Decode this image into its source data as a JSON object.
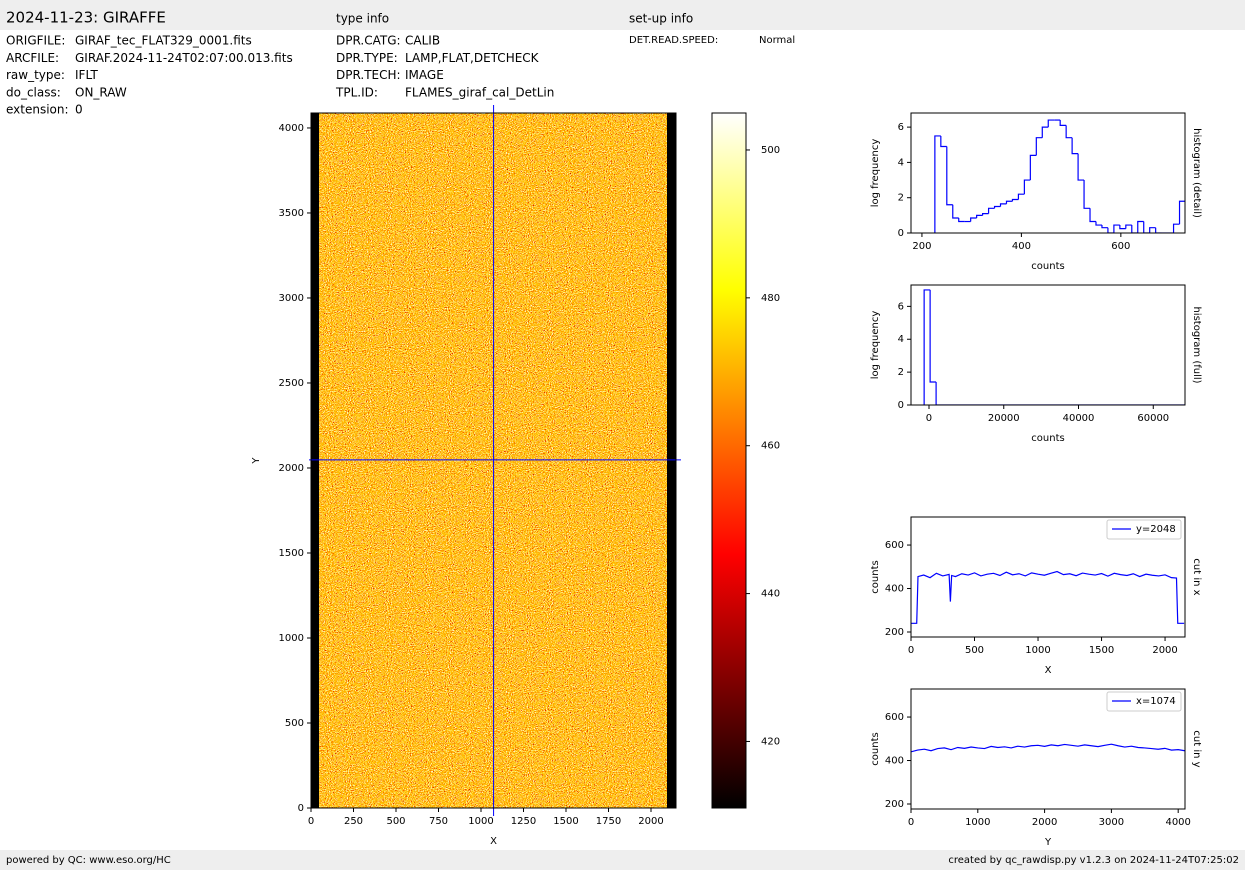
{
  "header": {
    "title": "2024-11-23: GIRAFFE",
    "type_heading": "type info",
    "setup_heading": "set-up info",
    "fields": [
      [
        "ORIGFILE:",
        "GIRAF_tec_FLAT329_0001.fits"
      ],
      [
        "ARCFILE:",
        "GIRAF.2024-11-24T02:07:00.013.fits"
      ],
      [
        "raw_type:",
        "IFLT"
      ],
      [
        "do_class:",
        "ON_RAW"
      ],
      [
        "extension:",
        "0"
      ]
    ],
    "type_fields": [
      [
        "DPR.CATG:",
        "CALIB"
      ],
      [
        "DPR.TYPE:",
        "LAMP,FLAT,DETCHECK"
      ],
      [
        "DPR.TECH:",
        "IMAGE"
      ],
      [
        "TPL.ID:",
        "FLAMES_giraf_cal_DetLin"
      ]
    ],
    "setup_fields": [
      [
        "DET.READ.SPEED:",
        "Normal"
      ]
    ]
  },
  "footer": {
    "left": "powered by QC: www.eso.org/HC",
    "right": "created by qc_rawdisp.py v1.2.3 on 2024-11-24T07:25:02"
  },
  "chart_data": [
    {
      "type": "image",
      "xlabel": "X",
      "ylabel": "Y",
      "xlim": [
        0,
        2147
      ],
      "ylim": [
        0,
        4088
      ],
      "xticks": [
        0,
        250,
        500,
        750,
        1000,
        1250,
        1500,
        1750,
        2000
      ],
      "yticks": [
        0,
        500,
        1000,
        1500,
        2000,
        2500,
        3000,
        3500,
        4000
      ],
      "crosshair": {
        "x": 1074,
        "y": 2048,
        "color": "#0000ff"
      },
      "colormap": "hot",
      "clim": [
        411,
        505
      ],
      "cticks": [
        420,
        440,
        460,
        480,
        500
      ]
    },
    {
      "type": "histogram",
      "xlabel": "counts",
      "ylabel": "log frequency",
      "side_label": "histogram (detail)",
      "color": "#0000ff",
      "xlim": [
        178,
        729
      ],
      "ylim": [
        0,
        6.8
      ],
      "xticks": [
        200,
        400,
        600
      ],
      "yticks": [
        0,
        2,
        4,
        6
      ],
      "bins": [
        226,
        238,
        250,
        262,
        274,
        286,
        298,
        310,
        322,
        334,
        346,
        358,
        370,
        382,
        394,
        406,
        418,
        430,
        442,
        454,
        466,
        478,
        490,
        502,
        514,
        526,
        538,
        550,
        562,
        574,
        586,
        598,
        610,
        622,
        634,
        646,
        658,
        670,
        682,
        694,
        706,
        718,
        730
      ],
      "counts": [
        5.5,
        4.9,
        1.6,
        0.85,
        0.65,
        0.65,
        0.85,
        1.0,
        1.1,
        1.4,
        1.5,
        1.65,
        1.8,
        1.9,
        2.2,
        3.0,
        4.4,
        5.4,
        6.0,
        6.4,
        6.4,
        6.1,
        5.4,
        4.5,
        3.0,
        1.4,
        0.65,
        0.45,
        0.3,
        0,
        0.45,
        0.25,
        0.45,
        0,
        0.65,
        0,
        0.3,
        0,
        0,
        0,
        0.5,
        1.8
      ]
    },
    {
      "type": "histogram",
      "xlabel": "counts",
      "ylabel": "log frequency",
      "side_label": "histogram (full)",
      "color": "#0000ff",
      "xlim": [
        -4815,
        68490
      ],
      "ylim": [
        0,
        7.3
      ],
      "xticks": [
        0,
        20000,
        40000,
        60000
      ],
      "yticks": [
        0,
        2,
        4,
        6
      ],
      "bins": [
        -1300,
        300,
        1900,
        68500
      ],
      "counts": [
        7.0,
        1.4,
        0
      ]
    },
    {
      "type": "line",
      "xlabel": "X",
      "ylabel": "counts",
      "side_label": "cut in x",
      "legend": "upper right",
      "xlim": [
        0,
        2157
      ],
      "ylim": [
        177,
        729
      ],
      "xticks": [
        0,
        500,
        1000,
        1500,
        2000
      ],
      "yticks": [
        200,
        400,
        600
      ],
      "x": [
        0,
        45,
        55,
        100,
        150,
        200,
        250,
        300,
        310,
        320,
        350,
        400,
        450,
        500,
        550,
        600,
        650,
        700,
        750,
        800,
        850,
        900,
        950,
        1000,
        1050,
        1100,
        1150,
        1200,
        1250,
        1300,
        1350,
        1400,
        1450,
        1500,
        1550,
        1600,
        1650,
        1700,
        1750,
        1800,
        1850,
        1900,
        1950,
        2000,
        2050,
        2090,
        2100,
        2150
      ],
      "series": [
        {
          "name": "y=2048",
          "color": "#0000ff",
          "values": [
            240,
            240,
            455,
            462,
            450,
            470,
            458,
            465,
            340,
            460,
            455,
            468,
            462,
            472,
            458,
            466,
            470,
            460,
            475,
            463,
            468,
            458,
            472,
            466,
            461,
            470,
            478,
            464,
            468,
            459,
            471,
            466,
            462,
            469,
            457,
            470,
            464,
            460,
            468,
            455,
            466,
            461,
            458,
            463,
            450,
            448,
            240,
            240
          ]
        }
      ]
    },
    {
      "type": "line",
      "xlabel": "Y",
      "ylabel": "counts",
      "side_label": "cut in y",
      "legend": "upper right",
      "xlim": [
        0,
        4102
      ],
      "ylim": [
        177,
        729
      ],
      "xticks": [
        0,
        1000,
        2000,
        3000,
        4000
      ],
      "yticks": [
        200,
        400,
        600
      ],
      "x": [
        0,
        100,
        200,
        300,
        400,
        500,
        600,
        700,
        800,
        900,
        1000,
        1100,
        1200,
        1300,
        1400,
        1500,
        1600,
        1700,
        1800,
        1900,
        2000,
        2100,
        2200,
        2300,
        2400,
        2500,
        2600,
        2700,
        2800,
        2900,
        3000,
        3100,
        3200,
        3300,
        3400,
        3500,
        3600,
        3700,
        3800,
        3900,
        4000,
        4100
      ],
      "series": [
        {
          "name": "x=1074",
          "color": "#0000ff",
          "values": [
            440,
            448,
            452,
            445,
            455,
            458,
            450,
            460,
            456,
            462,
            458,
            455,
            465,
            460,
            463,
            458,
            466,
            462,
            468,
            470,
            465,
            472,
            468,
            474,
            470,
            466,
            472,
            468,
            464,
            470,
            475,
            468,
            462,
            466,
            460,
            458,
            455,
            452,
            456,
            448,
            450,
            445
          ]
        }
      ]
    }
  ]
}
